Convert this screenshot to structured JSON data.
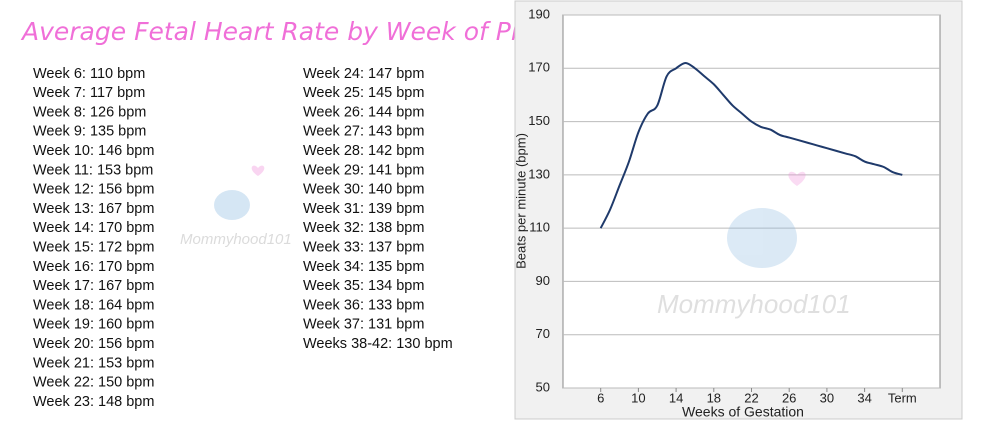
{
  "title": "Average Fetal Heart Rate by Week of Pregnancy",
  "watermark": "Mommyhood101",
  "list": {
    "column1": [
      "Week 6: 110 bpm",
      "Week 7: 117 bpm",
      "Week 8: 126 bpm",
      "Week 9: 135 bpm",
      "Week 10: 146 bpm",
      "Week 11: 153 bpm",
      "Week 12: 156 bpm",
      "Week 13: 167 bpm",
      "Week 14: 170 bpm",
      "Week 15: 172 bpm",
      "Week 16: 170 bpm",
      "Week 17: 167 bpm",
      "Week 18: 164 bpm",
      "Week 19: 160 bpm",
      "Week 20: 156 bpm",
      "Week 21: 153 bpm",
      "Week 22: 150 bpm",
      "Week 23: 148 bpm"
    ],
    "column2": [
      "Week 24: 147 bpm",
      "Week 25: 145 bpm",
      "Week 26: 144 bpm",
      "Week 27: 143 bpm",
      "Week 28: 142 bpm",
      "Week 29: 141 bpm",
      "Week 30: 140 bpm",
      "Week 31: 139 bpm",
      "Week 32: 138 bpm",
      "Week 33: 137 bpm",
      "Week 34: 135 bpm",
      "Week 35: 134 bpm",
      "Week 36: 133 bpm",
      "Week 37: 131 bpm",
      "Weeks 38-42: 130 bpm"
    ]
  },
  "chart_data": {
    "type": "line",
    "x_label": "Weeks of Gestation",
    "y_label": "Beats per minute (bpm)",
    "x": [
      6,
      7,
      8,
      9,
      10,
      11,
      12,
      13,
      14,
      15,
      16,
      17,
      18,
      19,
      20,
      21,
      22,
      23,
      24,
      25,
      26,
      27,
      28,
      29,
      30,
      31,
      32,
      33,
      34,
      35,
      36,
      37,
      38
    ],
    "series": [
      {
        "color": "#1f3a6b",
        "values": [
          110,
          117,
          126,
          135,
          146,
          153,
          156,
          167,
          170,
          172,
          170,
          167,
          164,
          160,
          156,
          153,
          150,
          148,
          147,
          145,
          144,
          143,
          142,
          141,
          140,
          139,
          138,
          137,
          135,
          134,
          133,
          131,
          130
        ]
      }
    ],
    "xlim": [
      2,
      42
    ],
    "xticks": [
      6,
      10,
      14,
      18,
      22,
      26,
      30,
      34,
      {
        "value": 38,
        "label": "Term"
      }
    ],
    "ylim": [
      50,
      190
    ],
    "yticks": [
      50,
      70,
      90,
      110,
      130,
      150,
      170,
      190
    ],
    "grid": true
  }
}
